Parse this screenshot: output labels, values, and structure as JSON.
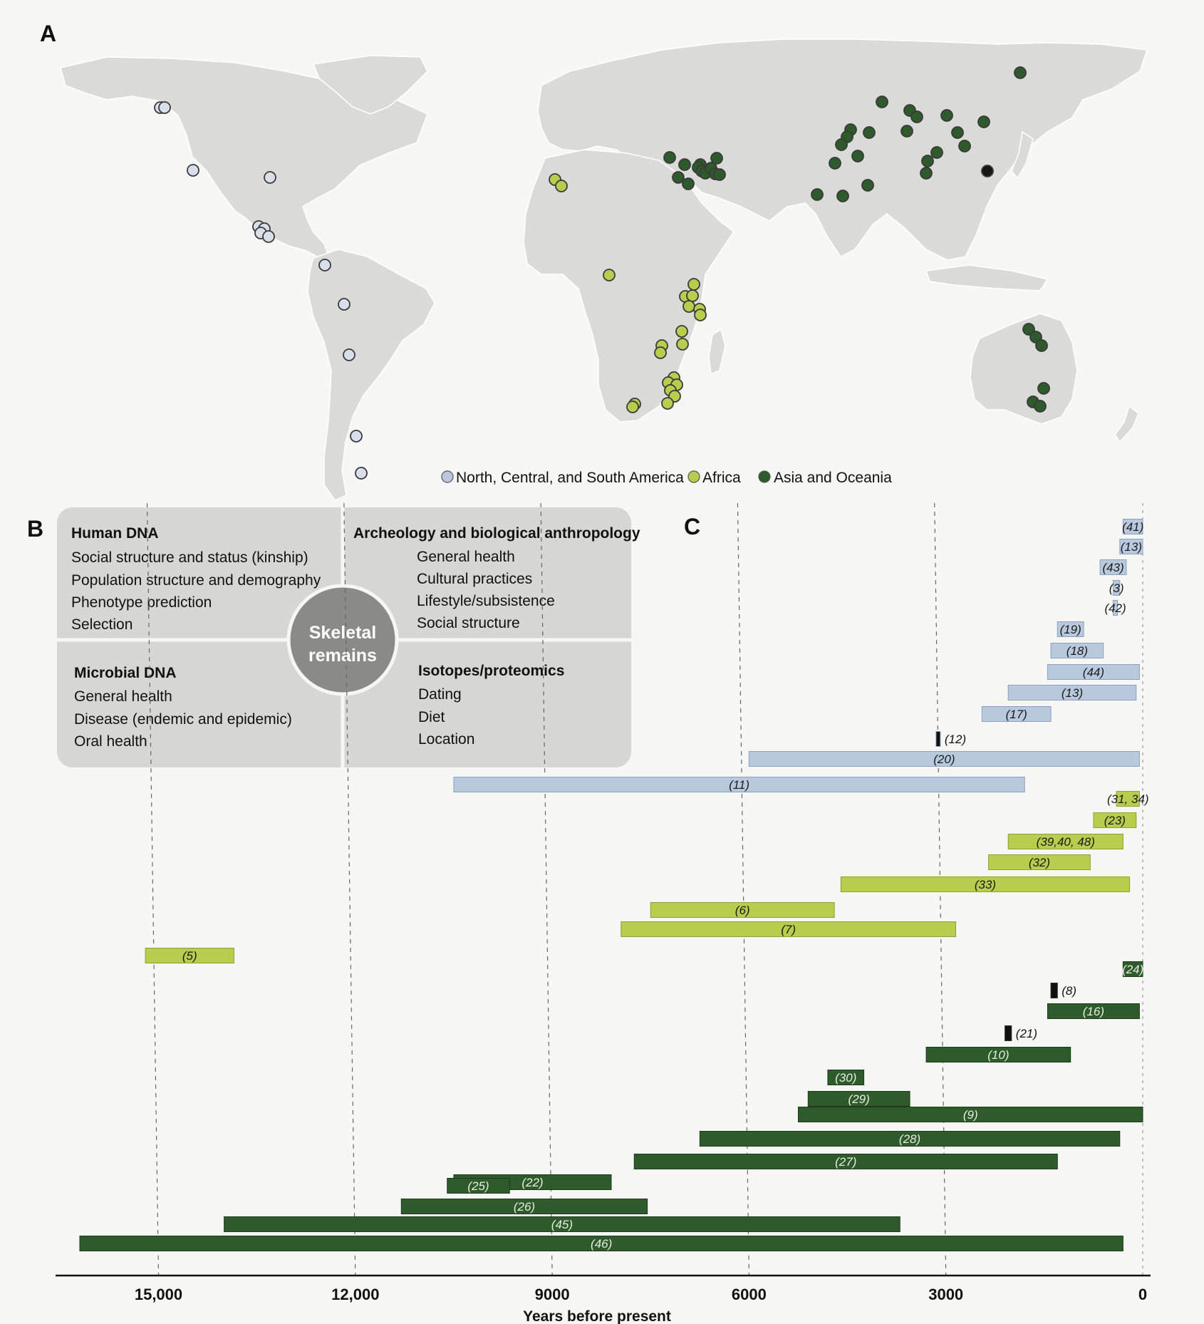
{
  "panels": {
    "a": "A",
    "b": "B",
    "c": "C"
  },
  "map": {
    "legend": [
      {
        "label": "North, Central, and South America",
        "color": "#b9c9dd"
      },
      {
        "label": "Africa",
        "color": "#b8cc4e"
      },
      {
        "label": "Asia and Oceania",
        "color": "#2f5a2c"
      }
    ],
    "land_color": "#dadbd8",
    "americas_sites": 16,
    "africa_sites": 26,
    "asia_oceania_sites": 43
  },
  "panel_b": {
    "center": [
      "Skeletal",
      "remains"
    ],
    "quadrants": [
      {
        "heading": "Human DNA",
        "items": [
          "Social structure and status (kinship)",
          "Population structure and demography",
          "Phenotype prediction",
          "Selection"
        ]
      },
      {
        "heading": "Archeology and biological anthropology",
        "items": [
          "General health",
          "Cultural practices",
          "Lifestyle/subsistence",
          "Social structure"
        ]
      },
      {
        "heading": "Microbial DNA",
        "items": [
          "General health",
          "Disease (endemic and epidemic)",
          "Oral health"
        ]
      },
      {
        "heading": "Isotopes/proteomics",
        "items": [
          "Dating",
          "Diet",
          "Location"
        ]
      }
    ]
  },
  "chart_data": {
    "type": "bar",
    "xlabel": "Years before present",
    "xlim": [
      16500,
      0
    ],
    "xticks": [
      15000,
      12000,
      9000,
      6000,
      3000,
      0
    ],
    "xtick_labels": [
      "15,000",
      "12,000",
      "9000",
      "6000",
      "3000",
      "0"
    ],
    "grid": "dashed vertical lines at 15,000, 12,000, 9000, 6000 and 3000",
    "colors": {
      "Americas": "#b9c9dd",
      "Africa": "#b8cc4e",
      "Asia": "#2f5a2c"
    },
    "bars": [
      {
        "label": "(41)",
        "start": 300,
        "end": 0,
        "group": "Americas",
        "label_pos": "inside"
      },
      {
        "label": "(13)",
        "start": 350,
        "end": 0,
        "group": "Americas",
        "label_pos": "inside"
      },
      {
        "label": "(43)",
        "start": 650,
        "end": 250,
        "group": "Americas",
        "label_pos": "inside"
      },
      {
        "label": "(3)",
        "start": 450,
        "end": 350,
        "group": "Americas",
        "label_pos": "inside"
      },
      {
        "label": "(42)",
        "start": 450,
        "end": 400,
        "group": "Americas",
        "label_pos": "inside"
      },
      {
        "label": "(19)",
        "start": 1300,
        "end": 900,
        "group": "Americas",
        "label_pos": "inside"
      },
      {
        "label": "(18)",
        "start": 1400,
        "end": 600,
        "group": "Americas",
        "label_pos": "inside"
      },
      {
        "label": "(44)",
        "start": 1450,
        "end": 50,
        "group": "Americas",
        "label_pos": "inside"
      },
      {
        "label": "(13)",
        "start": 2050,
        "end": 100,
        "group": "Americas",
        "label_pos": "inside"
      },
      {
        "label": "(17)",
        "start": 2450,
        "end": 1400,
        "group": "Americas",
        "label_pos": "inside"
      },
      {
        "label": "(12)",
        "start": 3150,
        "end": 3100,
        "group": "Americas",
        "label_pos": "right"
      },
      {
        "label": "(20)",
        "start": 6000,
        "end": 50,
        "group": "Americas",
        "label_pos": "inside"
      },
      {
        "label": "(11)",
        "start": 10500,
        "end": 1800,
        "group": "Americas",
        "label_pos": "inside"
      },
      {
        "label": "(31, 34)",
        "start": 400,
        "end": 50,
        "group": "Africa",
        "label_pos": "inside"
      },
      {
        "label": "(23)",
        "start": 750,
        "end": 100,
        "group": "Africa",
        "label_pos": "inside"
      },
      {
        "label": "(39,40, 48)",
        "start": 2050,
        "end": 300,
        "group": "Africa",
        "label_pos": "inside"
      },
      {
        "label": "(32)",
        "start": 2350,
        "end": 800,
        "group": "Africa",
        "label_pos": "inside"
      },
      {
        "label": "(33)",
        "start": 4600,
        "end": 200,
        "group": "Africa",
        "label_pos": "inside"
      },
      {
        "label": "(6)",
        "start": 7500,
        "end": 4700,
        "group": "Africa",
        "label_pos": "inside"
      },
      {
        "label": "(7)",
        "start": 7950,
        "end": 2850,
        "group": "Africa",
        "label_pos": "inside"
      },
      {
        "label": "(5)",
        "start": 15200,
        "end": 13850,
        "group": "Africa",
        "label_pos": "inside"
      },
      {
        "label": "(24)",
        "start": 300,
        "end": 0,
        "group": "Asia",
        "label_pos": "inside"
      },
      {
        "label": "(8)",
        "start": 1400,
        "end": 1300,
        "group": "Asia",
        "label_pos": "right"
      },
      {
        "label": "(16)",
        "start": 1450,
        "end": 50,
        "group": "Asia",
        "label_pos": "inside"
      },
      {
        "label": "(21)",
        "start": 2100,
        "end": 2000,
        "group": "Asia",
        "label_pos": "right"
      },
      {
        "label": "(10)",
        "start": 3300,
        "end": 1100,
        "group": "Asia",
        "label_pos": "inside"
      },
      {
        "label": "(30)",
        "start": 4800,
        "end": 4250,
        "group": "Asia",
        "label_pos": "inside"
      },
      {
        "label": "(29)",
        "start": 5100,
        "end": 3550,
        "group": "Asia",
        "label_pos": "inside"
      },
      {
        "label": "(9)",
        "start": 5250,
        "end": 0,
        "group": "Asia",
        "label_pos": "inside"
      },
      {
        "label": "(28)",
        "start": 6750,
        "end": 350,
        "group": "Asia",
        "label_pos": "inside"
      },
      {
        "label": "(27)",
        "start": 7750,
        "end": 1300,
        "group": "Asia",
        "label_pos": "inside"
      },
      {
        "label": "(22)",
        "start": 10500,
        "end": 8100,
        "group": "Asia",
        "label_pos": "inside"
      },
      {
        "label": "(25)",
        "start": 10600,
        "end": 9650,
        "group": "Asia",
        "label_pos": "inside"
      },
      {
        "label": "(26)",
        "start": 11300,
        "end": 7550,
        "group": "Asia",
        "label_pos": "inside"
      },
      {
        "label": "(45)",
        "start": 14000,
        "end": 3700,
        "group": "Asia",
        "label_pos": "inside"
      },
      {
        "label": "(46)",
        "start": 16200,
        "end": 300,
        "group": "Asia",
        "label_pos": "inside"
      }
    ]
  }
}
